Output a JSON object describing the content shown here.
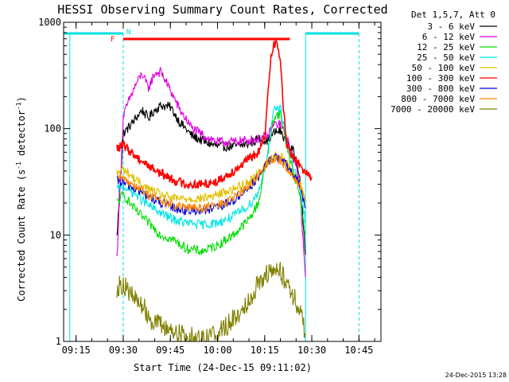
{
  "chart_data": {
    "type": "line",
    "title": "HESSI Observing Summary Count Rates, Corrected",
    "xlabel": "Start Time (24-Dec-15 09:11:02)",
    "ylabel": "Corrected Count Rate (s",
    "ylabel_sup": "-1",
    "ylabel_tail": " detector",
    "ylabel_tail_sup": "-1",
    "ylabel_close": ")",
    "y_scale": "log",
    "ylim": [
      1,
      1000
    ],
    "xlim": [
      "09:11:02",
      "10:52:00"
    ],
    "x_ticks": [
      "09:15",
      "09:30",
      "09:45",
      "10:00",
      "10:15",
      "10:30",
      "10:45"
    ],
    "y_ticks": [
      "1",
      "10",
      "100",
      "1000"
    ],
    "legend_title": "Det 1,5,7, Att 0",
    "legend_position": "right",
    "timestamp": "24-Dec-2015 13:28",
    "flag_labels": {
      "flare": "F",
      "night": "N"
    },
    "series": [
      {
        "name": "3 - 6 keV",
        "color": "#000000",
        "x": [
          "09:28",
          "09:30",
          "09:32",
          "09:34",
          "09:36",
          "09:38",
          "09:40",
          "09:42",
          "09:45",
          "09:48",
          "09:52",
          "09:56",
          "10:00",
          "10:05",
          "10:10",
          "10:13",
          "10:16",
          "10:18",
          "10:20",
          "10:22",
          "10:24",
          "10:26",
          "10:28"
        ],
        "y": [
          9.5,
          90,
          105,
          125,
          150,
          125,
          150,
          165,
          160,
          115,
          85,
          75,
          68,
          68,
          72,
          80,
          78,
          92,
          95,
          75,
          62,
          40,
          6.5
        ]
      },
      {
        "name": "6 - 12 keV",
        "color": "#dd00dd",
        "x": [
          "09:28",
          "09:30",
          "09:32",
          "09:34",
          "09:36",
          "09:38",
          "09:40",
          "09:42",
          "09:45",
          "09:48",
          "09:52",
          "09:56",
          "10:00",
          "10:05",
          "10:10",
          "10:13",
          "10:16",
          "10:18",
          "10:20",
          "10:22",
          "10:24",
          "10:26",
          "10:28"
        ],
        "y": [
          6,
          130,
          190,
          260,
          330,
          240,
          330,
          340,
          230,
          150,
          100,
          85,
          75,
          75,
          78,
          80,
          85,
          110,
          110,
          80,
          55,
          35,
          4
        ]
      },
      {
        "name": "12 - 25 keV",
        "color": "#00dd00",
        "x": [
          "09:28",
          "09:30",
          "09:34",
          "09:38",
          "09:42",
          "09:46",
          "09:50",
          "09:55",
          "10:00",
          "10:05",
          "10:10",
          "10:13",
          "10:16",
          "10:18",
          "10:20",
          "10:22",
          "10:24",
          "10:26",
          "10:28"
        ],
        "y": [
          20,
          24,
          17,
          13,
          10,
          9,
          7.5,
          7,
          8,
          10,
          14,
          20,
          60,
          130,
          140,
          70,
          40,
          25,
          10
        ]
      },
      {
        "name": "25 - 50 keV",
        "color": "#00e5e5",
        "x": [
          "09:28",
          "09:30",
          "09:34",
          "09:38",
          "09:42",
          "09:46",
          "09:50",
          "09:55",
          "10:00",
          "10:05",
          "10:10",
          "10:13",
          "10:16",
          "10:18",
          "10:20",
          "10:22",
          "10:24",
          "10:26",
          "10:28"
        ],
        "y": [
          27,
          29,
          24,
          19,
          16,
          14,
          13,
          12.5,
          13,
          15,
          19,
          25,
          60,
          150,
          160,
          80,
          45,
          30,
          13
        ]
      },
      {
        "name": "50 - 100 keV",
        "color": "#e0c000",
        "x": [
          "09:28",
          "09:30",
          "09:34",
          "09:38",
          "09:42",
          "09:46",
          "09:50",
          "09:55",
          "10:00",
          "10:05",
          "10:10",
          "10:13",
          "10:16",
          "10:18",
          "10:20",
          "10:22",
          "10:24",
          "10:26",
          "10:28"
        ],
        "y": [
          38,
          42,
          33,
          27,
          24,
          22,
          22,
          22,
          24,
          27,
          32,
          38,
          48,
          55,
          55,
          48,
          40,
          32,
          20
        ]
      },
      {
        "name": "100 - 300 keV",
        "color": "#ff0000",
        "x": [
          "09:28",
          "09:30",
          "09:34",
          "09:38",
          "09:42",
          "09:46",
          "09:50",
          "09:55",
          "10:00",
          "10:05",
          "10:10",
          "10:13",
          "10:15",
          "10:16",
          "10:17",
          "10:18",
          "10:19",
          "10:20",
          "10:21",
          "10:22",
          "10:24",
          "10:26",
          "10:28",
          "10:30"
        ],
        "y": [
          65,
          70,
          55,
          45,
          38,
          33,
          30,
          30,
          32,
          40,
          52,
          60,
          80,
          200,
          500,
          640,
          620,
          450,
          150,
          70,
          55,
          45,
          40,
          35
        ]
      },
      {
        "name": "300 - 800 keV",
        "color": "#0000dd",
        "x": [
          "09:28",
          "09:30",
          "09:34",
          "09:38",
          "09:42",
          "09:46",
          "09:50",
          "09:55",
          "10:00",
          "10:05",
          "10:10",
          "10:13",
          "10:16",
          "10:18",
          "10:20",
          "10:22",
          "10:24",
          "10:26",
          "10:28"
        ],
        "y": [
          32,
          31,
          27,
          23,
          20,
          18,
          17,
          17,
          18,
          21,
          28,
          35,
          48,
          55,
          52,
          45,
          37,
          30,
          18
        ]
      },
      {
        "name": "800 - 7000 keV",
        "color": "#ff8800",
        "x": [
          "09:28",
          "09:30",
          "09:34",
          "09:38",
          "09:42",
          "09:46",
          "09:50",
          "09:55",
          "10:00",
          "10:05",
          "10:10",
          "10:13",
          "10:16",
          "10:18",
          "10:20",
          "10:22",
          "10:24",
          "10:26",
          "10:28"
        ],
        "y": [
          35,
          34,
          29,
          24,
          21,
          19,
          18,
          18,
          19,
          22,
          29,
          36,
          47,
          53,
          50,
          43,
          36,
          30,
          22
        ]
      },
      {
        "name": "7000 - 20000 keV",
        "color": "#808000",
        "x": [
          "09:28",
          "09:30",
          "09:33",
          "09:36",
          "09:39",
          "09:42",
          "09:45",
          "09:50",
          "09:55",
          "10:00",
          "10:04",
          "10:08",
          "10:11",
          "10:14",
          "10:17",
          "10:20",
          "10:23",
          "10:26",
          "10:28"
        ],
        "y": [
          3.2,
          3.5,
          2.6,
          2.2,
          1.6,
          1.4,
          1.3,
          1.1,
          1.1,
          1.2,
          1.5,
          2.0,
          2.8,
          4.0,
          4.5,
          4.5,
          3.2,
          2.0,
          1.2
        ]
      }
    ]
  }
}
